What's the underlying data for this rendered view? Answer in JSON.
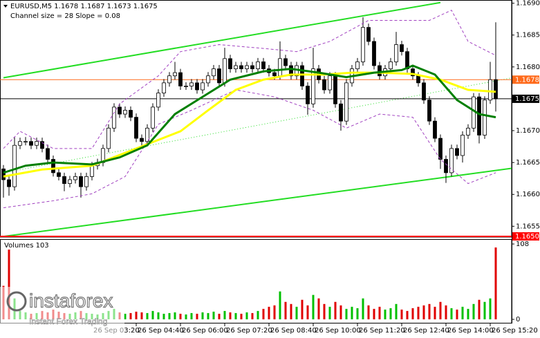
{
  "chart_data": [
    {
      "type": "candlestick",
      "title": "EURUSD,M5  1.1678 1.1687 1.1673 1.1675",
      "subtitle": "Channel size = 28 Slope = 0.08",
      "categories": [
        null,
        null,
        null,
        null,
        null,
        null,
        null,
        null,
        null,
        null,
        null,
        null,
        null,
        null,
        null,
        null,
        "26 Sep 03:20",
        null,
        null,
        null,
        null,
        null,
        null,
        null,
        "26 Sep 04:40",
        null,
        null,
        null,
        null,
        null,
        null,
        null,
        "26 Sep 06:00",
        null,
        null,
        null,
        null,
        null,
        null,
        null,
        "26 Sep 07:20",
        null,
        null,
        null,
        null,
        null,
        null,
        null,
        "26 Sep 08:40",
        null,
        null,
        null,
        null,
        null,
        null,
        null,
        "26 Sep 10:00",
        null,
        null,
        null,
        null,
        null,
        null,
        null,
        "26 Sep 11:20",
        null,
        null,
        null,
        null,
        null,
        null,
        null,
        "26 Sep 12:40",
        null,
        null,
        null,
        null,
        null,
        null,
        null,
        "26 Sep 14:00",
        null,
        null,
        null,
        null,
        null,
        null,
        null,
        "26 Sep 15:20",
        null
      ],
      "open": [
        1.1664,
        1.16623,
        1.16612,
        1.16677,
        1.16683,
        1.16683,
        1.16677,
        1.16683,
        1.16672,
        1.16655,
        1.16634,
        1.16628,
        1.16617,
        1.16623,
        1.16628,
        1.16612,
        1.16628,
        1.16645,
        1.1665,
        1.16672,
        1.16704,
        1.16737,
        1.16726,
        1.16732,
        1.16721,
        1.16688,
        1.16683,
        1.16704,
        1.16737,
        1.16759,
        1.16775,
        1.16786,
        1.16791,
        1.1677,
        1.1677,
        1.16775,
        1.16764,
        1.16775,
        1.16786,
        1.16797,
        1.16775,
        1.16813,
        1.16797,
        1.16802,
        1.16797,
        1.16802,
        1.16797,
        1.16808,
        1.16797,
        1.16791,
        1.16786,
        1.16813,
        1.16802,
        1.16786,
        1.16802,
        1.1677,
        1.16742,
        1.16797,
        1.1678,
        1.16764,
        1.16786,
        1.16742,
        1.16715,
        1.16775,
        1.16797,
        1.16808,
        1.16862,
        1.1684,
        1.16802,
        1.16786,
        1.16797,
        1.16808,
        1.16835,
        1.16824,
        1.16797,
        1.16786,
        1.16775,
        1.16748,
        1.16715,
        1.16688,
        1.16655,
        1.16634,
        1.16672,
        1.16661,
        1.16693,
        1.16704,
        1.16753,
        1.16693,
        1.16748,
        1.1678
      ],
      "high": [
        1.16646,
        1.16629,
        1.1669,
        1.16689,
        1.1669,
        1.16689,
        1.16689,
        1.16689,
        1.16678,
        1.16661,
        1.1664,
        1.16634,
        1.16629,
        1.16634,
        1.16634,
        1.16634,
        1.16651,
        1.16656,
        1.16678,
        1.1671,
        1.16743,
        1.16743,
        1.16738,
        1.16738,
        1.16727,
        1.16694,
        1.1671,
        1.16743,
        1.16765,
        1.16781,
        1.16792,
        1.16808,
        1.16797,
        1.16776,
        1.16781,
        1.16781,
        1.16781,
        1.16792,
        1.16803,
        1.16803,
        1.1683,
        1.16819,
        1.16808,
        1.16808,
        1.16808,
        1.16808,
        1.16814,
        1.16814,
        1.16803,
        1.16797,
        1.1684,
        1.16819,
        1.16808,
        1.16808,
        1.16808,
        1.16776,
        1.1683,
        1.16803,
        1.16786,
        1.16792,
        1.16792,
        1.16748,
        1.16781,
        1.16803,
        1.16814,
        1.16878,
        1.16868,
        1.16846,
        1.16808,
        1.16803,
        1.16814,
        1.16855,
        1.16841,
        1.1683,
        1.16803,
        1.16792,
        1.16781,
        1.16754,
        1.16721,
        1.16694,
        1.16661,
        1.16678,
        1.16678,
        1.16699,
        1.1671,
        1.16759,
        1.16759,
        1.16754,
        1.16808,
        1.1687
      ],
      "low": [
        1.16595,
        1.16598,
        1.16606,
        1.16671,
        1.16677,
        1.16671,
        1.16671,
        1.16666,
        1.16649,
        1.16628,
        1.16622,
        1.16605,
        1.16611,
        1.16617,
        1.16595,
        1.16606,
        1.16622,
        1.16639,
        1.16644,
        1.16666,
        1.16698,
        1.1672,
        1.1672,
        1.16715,
        1.16682,
        1.16672,
        1.16677,
        1.16698,
        1.16731,
        1.16753,
        1.16769,
        1.1678,
        1.16764,
        1.16764,
        1.16764,
        1.16758,
        1.16758,
        1.16769,
        1.1678,
        1.16769,
        1.16769,
        1.16791,
        1.16791,
        1.16791,
        1.16791,
        1.16791,
        1.16791,
        1.16791,
        1.16785,
        1.1678,
        1.1678,
        1.16796,
        1.1678,
        1.1678,
        1.16764,
        1.16725,
        1.16736,
        1.16774,
        1.16758,
        1.16758,
        1.16736,
        1.167,
        1.16709,
        1.16769,
        1.16791,
        1.16802,
        1.16834,
        1.16796,
        1.1678,
        1.1678,
        1.16791,
        1.16802,
        1.16818,
        1.16791,
        1.1678,
        1.16769,
        1.16742,
        1.16709,
        1.16682,
        1.1664,
        1.16618,
        1.16628,
        1.16655,
        1.1665,
        1.16687,
        1.16698,
        1.1668,
        1.16687,
        1.16742,
        1.1673
      ],
      "close": [
        1.16623,
        1.16612,
        1.16677,
        1.16683,
        1.16683,
        1.16677,
        1.16683,
        1.16672,
        1.16655,
        1.16634,
        1.16628,
        1.16617,
        1.16623,
        1.16628,
        1.16612,
        1.16628,
        1.16645,
        1.1665,
        1.16672,
        1.16704,
        1.16737,
        1.16726,
        1.16732,
        1.16721,
        1.16688,
        1.16683,
        1.16704,
        1.16737,
        1.16759,
        1.16775,
        1.16786,
        1.16791,
        1.1677,
        1.1677,
        1.16775,
        1.16764,
        1.16775,
        1.16786,
        1.16797,
        1.16775,
        1.16813,
        1.16797,
        1.16802,
        1.16797,
        1.16802,
        1.16797,
        1.16808,
        1.16797,
        1.16791,
        1.16786,
        1.16813,
        1.16802,
        1.16786,
        1.16802,
        1.1677,
        1.16742,
        1.16797,
        1.1678,
        1.16764,
        1.16786,
        1.16742,
        1.16715,
        1.16775,
        1.16797,
        1.16808,
        1.16862,
        1.1684,
        1.16802,
        1.16786,
        1.16797,
        1.16808,
        1.16835,
        1.16824,
        1.16797,
        1.16786,
        1.16775,
        1.16748,
        1.16715,
        1.16688,
        1.16655,
        1.16634,
        1.16672,
        1.16661,
        1.16693,
        1.16704,
        1.16753,
        1.16693,
        1.16748,
        1.1678,
        1.1675
      ],
      "ylim": [
        1.16533,
        1.16905
      ],
      "yticks": [
        {
          "value": 1.169,
          "label": "1.1690"
        },
        1.1685,
        {
          "value": 1.168,
          "label": "1.1680"
        },
        {
          "value": 1.167,
          "label": "1.1670"
        },
        1.1665,
        {
          "value": 1.166,
          "label": "1.1660"
        },
        1.1655
      ],
      "overlays": [
        {
          "x": [
            0,
            3,
            9,
            16,
            21,
            28,
            32,
            39,
            47,
            53,
            59,
            66,
            72,
            77,
            81,
            84,
            89
          ],
          "values": [
            1.16672,
            1.16699,
            1.16672,
            1.16672,
            1.16742,
            1.16786,
            1.16824,
            1.16835,
            1.16829,
            1.16824,
            1.1684,
            1.16873,
            1.16873,
            1.16873,
            1.16889,
            1.1684,
            1.16818
          ],
          "color": "#a040c0",
          "style": "dashed",
          "width": 1
        },
        {
          "x": [
            0,
            9,
            16,
            22,
            28,
            34,
            42,
            49,
            56,
            62,
            68,
            74,
            79,
            84,
            89
          ],
          "values": [
            1.16579,
            1.1659,
            1.16601,
            1.16628,
            1.1671,
            1.16732,
            1.16764,
            1.16753,
            1.16732,
            1.16704,
            1.16726,
            1.16721,
            1.16655,
            1.16617,
            1.16634
          ],
          "color": "#a040c0",
          "style": "dashed",
          "width": 1
        },
        {
          "x": [
            0,
            7,
            16,
            24,
            32,
            37,
            42,
            47,
            52,
            58,
            63,
            68,
            74,
            79,
            84,
            89
          ],
          "values": [
            1.16628,
            1.16639,
            1.16645,
            1.16672,
            1.16699,
            1.16732,
            1.16764,
            1.1678,
            1.16788,
            1.16788,
            1.16791,
            1.16791,
            1.16789,
            1.1678,
            1.16764,
            1.16761
          ],
          "color": "#ffff00",
          "style": "solid",
          "width": 3
        },
        {
          "x": [
            0,
            4,
            9,
            16,
            21,
            26,
            31,
            36,
            41,
            47,
            52,
            57,
            62,
            67,
            72,
            74,
            78,
            82,
            86,
            89
          ],
          "values": [
            1.16634,
            1.16645,
            1.1665,
            1.16647,
            1.16658,
            1.16677,
            1.16726,
            1.16753,
            1.1678,
            1.16793,
            1.16797,
            1.16791,
            1.16784,
            1.16791,
            1.16795,
            1.16802,
            1.16788,
            1.16748,
            1.16726,
            1.16721
          ],
          "color": "#007f00",
          "style": "solid",
          "width": 3
        }
      ],
      "trendlines": [
        {
          "x": [
            0,
            79
          ],
          "values": [
            1.16783,
            1.16901
          ],
          "color": "#22dd22",
          "style": "solid",
          "width": 2
        },
        {
          "x": [
            0,
            92
          ],
          "values": [
            1.16534,
            1.16641
          ],
          "color": "#22dd22",
          "style": "solid",
          "width": 2
        },
        {
          "x": [
            0,
            92
          ],
          "values": [
            1.16634,
            1.16783
          ],
          "color": "#22dd22",
          "style": "dotted",
          "width": 1
        }
      ],
      "hlines": [
        {
          "value": 1.1678,
          "color": "#ff6a1a",
          "text_color": "#ffffff"
        },
        {
          "value": 1.1675,
          "color": "#000000",
          "text_color": "#ffffff"
        }
      ],
      "bottom_label": {
        "text": "1.1650",
        "color": "#ff0000"
      },
      "candle_up": "#ffffff",
      "candle_down": "#000000",
      "candle_edge": "#000000"
    },
    {
      "type": "bar",
      "title": "Volumes 103",
      "values": [
        48,
        100,
        30,
        12,
        10,
        8,
        9,
        12,
        10,
        14,
        11,
        9,
        8,
        10,
        12,
        9,
        8,
        7,
        9,
        12,
        15,
        10,
        8,
        9,
        11,
        10,
        9,
        12,
        10,
        8,
        9,
        10,
        8,
        7,
        9,
        8,
        10,
        9,
        11,
        8,
        12,
        10,
        9,
        8,
        10,
        9,
        12,
        15,
        18,
        20,
        40,
        25,
        22,
        18,
        28,
        20,
        35,
        30,
        22,
        18,
        25,
        20,
        15,
        18,
        16,
        30,
        20,
        15,
        18,
        14,
        16,
        22,
        14,
        12,
        16,
        18,
        20,
        22,
        18,
        25,
        20,
        16,
        14,
        18,
        15,
        22,
        28,
        25,
        30,
        103
      ],
      "ylim": [
        0,
        108
      ],
      "yticks": [
        0,
        108
      ],
      "up_color": "#00c000",
      "down_color": "#e00000"
    }
  ],
  "watermark": {
    "brand": "instaforex",
    "tagline": "Instant Forex Trading"
  }
}
